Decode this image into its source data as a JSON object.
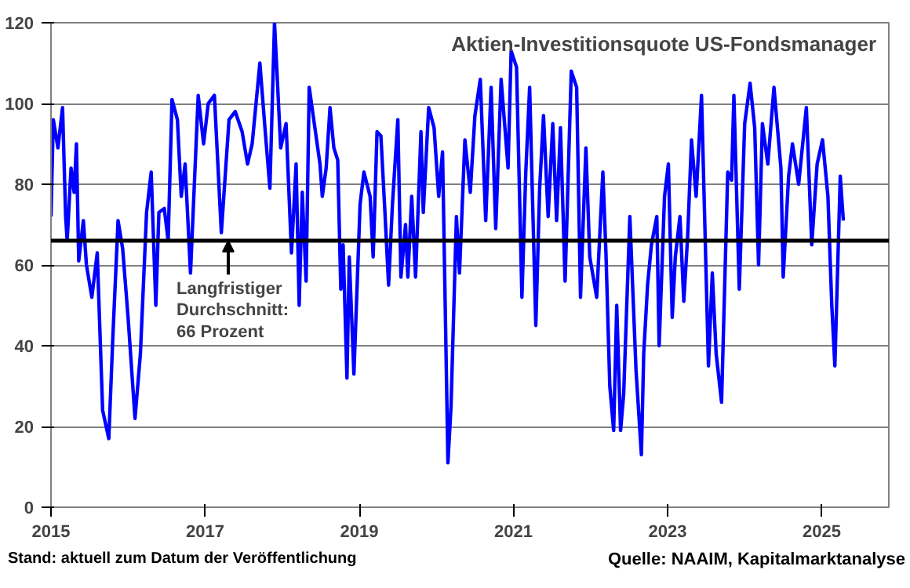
{
  "chart_data": {
    "type": "line",
    "title": "Aktien-Investitionsquote US-Fondsmanager",
    "x": [
      2015.0,
      2015.03,
      2015.09,
      2015.15,
      2015.19,
      2015.21,
      2015.26,
      2015.3,
      2015.33,
      2015.36,
      2015.42,
      2015.46,
      2015.53,
      2015.6,
      2015.67,
      2015.75,
      2015.8,
      2015.87,
      2015.93,
      2016.0,
      2016.09,
      2016.16,
      2016.24,
      2016.3,
      2016.36,
      2016.4,
      2016.47,
      2016.52,
      2016.57,
      2016.64,
      2016.69,
      2016.74,
      2016.81,
      2016.91,
      2016.98,
      2017.04,
      2017.12,
      2017.21,
      2017.31,
      2017.39,
      2017.48,
      2017.55,
      2017.61,
      2017.71,
      2017.78,
      2017.84,
      2017.9,
      2017.98,
      2018.05,
      2018.12,
      2018.18,
      2018.22,
      2018.26,
      2018.31,
      2018.35,
      2018.49,
      2018.52,
      2018.57,
      2018.62,
      2018.67,
      2018.72,
      2018.76,
      2018.79,
      2018.84,
      2018.87,
      2018.93,
      2019.01,
      2019.06,
      2019.14,
      2019.18,
      2019.23,
      2019.28,
      2019.33,
      2019.38,
      2019.43,
      2019.5,
      2019.54,
      2019.6,
      2019.63,
      2019.68,
      2019.73,
      2019.8,
      2019.83,
      2019.9,
      2019.97,
      2020.03,
      2020.08,
      2020.15,
      2020.19,
      2020.26,
      2020.3,
      2020.37,
      2020.44,
      2020.5,
      2020.57,
      2020.64,
      2020.71,
      2020.77,
      2020.84,
      2020.93,
      2020.97,
      2021.04,
      2021.11,
      2021.16,
      2021.21,
      2021.29,
      2021.34,
      2021.39,
      2021.45,
      2021.51,
      2021.56,
      2021.61,
      2021.67,
      2021.75,
      2021.82,
      2021.87,
      2021.94,
      2021.99,
      2022.08,
      2022.16,
      2022.2,
      2022.25,
      2022.3,
      2022.34,
      2022.39,
      2022.43,
      2022.51,
      2022.59,
      2022.66,
      2022.69,
      2022.74,
      2022.79,
      2022.86,
      2022.89,
      2022.96,
      2023.01,
      2023.06,
      2023.1,
      2023.16,
      2023.21,
      2023.26,
      2023.31,
      2023.37,
      2023.44,
      2023.53,
      2023.58,
      2023.63,
      2023.7,
      2023.78,
      2023.83,
      2023.86,
      2023.93,
      2024.0,
      2024.07,
      2024.13,
      2024.18,
      2024.23,
      2024.3,
      2024.38,
      2024.47,
      2024.5,
      2024.57,
      2024.62,
      2024.7,
      2024.8,
      2024.87,
      2024.94,
      2025.01,
      2025.08,
      2025.13,
      2025.17,
      2025.24,
      2025.28
    ],
    "series": [
      {
        "color": "#0000ff",
        "values": [
          72,
          96,
          89,
          99,
          72,
          66,
          84,
          78,
          90,
          61,
          71,
          60,
          52,
          63,
          24,
          17,
          41,
          71,
          64,
          47,
          22,
          38,
          73,
          83,
          50,
          73,
          74,
          66,
          101,
          96,
          77,
          85,
          58,
          102,
          90,
          100,
          102,
          68,
          96,
          98,
          93,
          85,
          90,
          110,
          93,
          79,
          120,
          89,
          95,
          63,
          85,
          50,
          78,
          56,
          104,
          85,
          77,
          84,
          99,
          89,
          86,
          54,
          65,
          32,
          62,
          33,
          75,
          83,
          77,
          62,
          93,
          92,
          74,
          55,
          75,
          96,
          57,
          70,
          57,
          77,
          57,
          93,
          73,
          99,
          94,
          77,
          88,
          11,
          25,
          72,
          58,
          91,
          78,
          97,
          106,
          71,
          104,
          69,
          106,
          84,
          113,
          109,
          52,
          83,
          104,
          45,
          79,
          97,
          72,
          95,
          71,
          94,
          56,
          108,
          104,
          52,
          89,
          62,
          52,
          83,
          63,
          30,
          19,
          50,
          19,
          28,
          72,
          34,
          13,
          38,
          55,
          65,
          72,
          40,
          77,
          85,
          47,
          62,
          72,
          51,
          67,
          91,
          77,
          102,
          35,
          58,
          38,
          26,
          83,
          81,
          102,
          54,
          95,
          105,
          94,
          60,
          95,
          85,
          104,
          84,
          57,
          82,
          90,
          80,
          99,
          65,
          85,
          91,
          77,
          50,
          35,
          82,
          71
        ]
      }
    ],
    "xlim": [
      2015,
      2025.87
    ],
    "ylim": [
      0,
      120
    ],
    "xticks": [
      2015,
      2017,
      2019,
      2021,
      2023,
      2025
    ],
    "yticks": [
      0,
      20,
      40,
      60,
      80,
      100,
      120
    ],
    "grid": "y",
    "marker": "none",
    "line_style": "solid",
    "ref_lines": [
      {
        "axis": "y",
        "value": 66,
        "color": "#000000"
      }
    ],
    "annotations": [
      {
        "text": "Langfristiger\nDurchschnitt:\n66 Prozent",
        "x": 2017.3,
        "y": 66
      },
      "Stand: aktuell zum Datum der Veröffentlichung",
      "Quelle: NAAIM, Kapitalmarktanalyse"
    ]
  }
}
